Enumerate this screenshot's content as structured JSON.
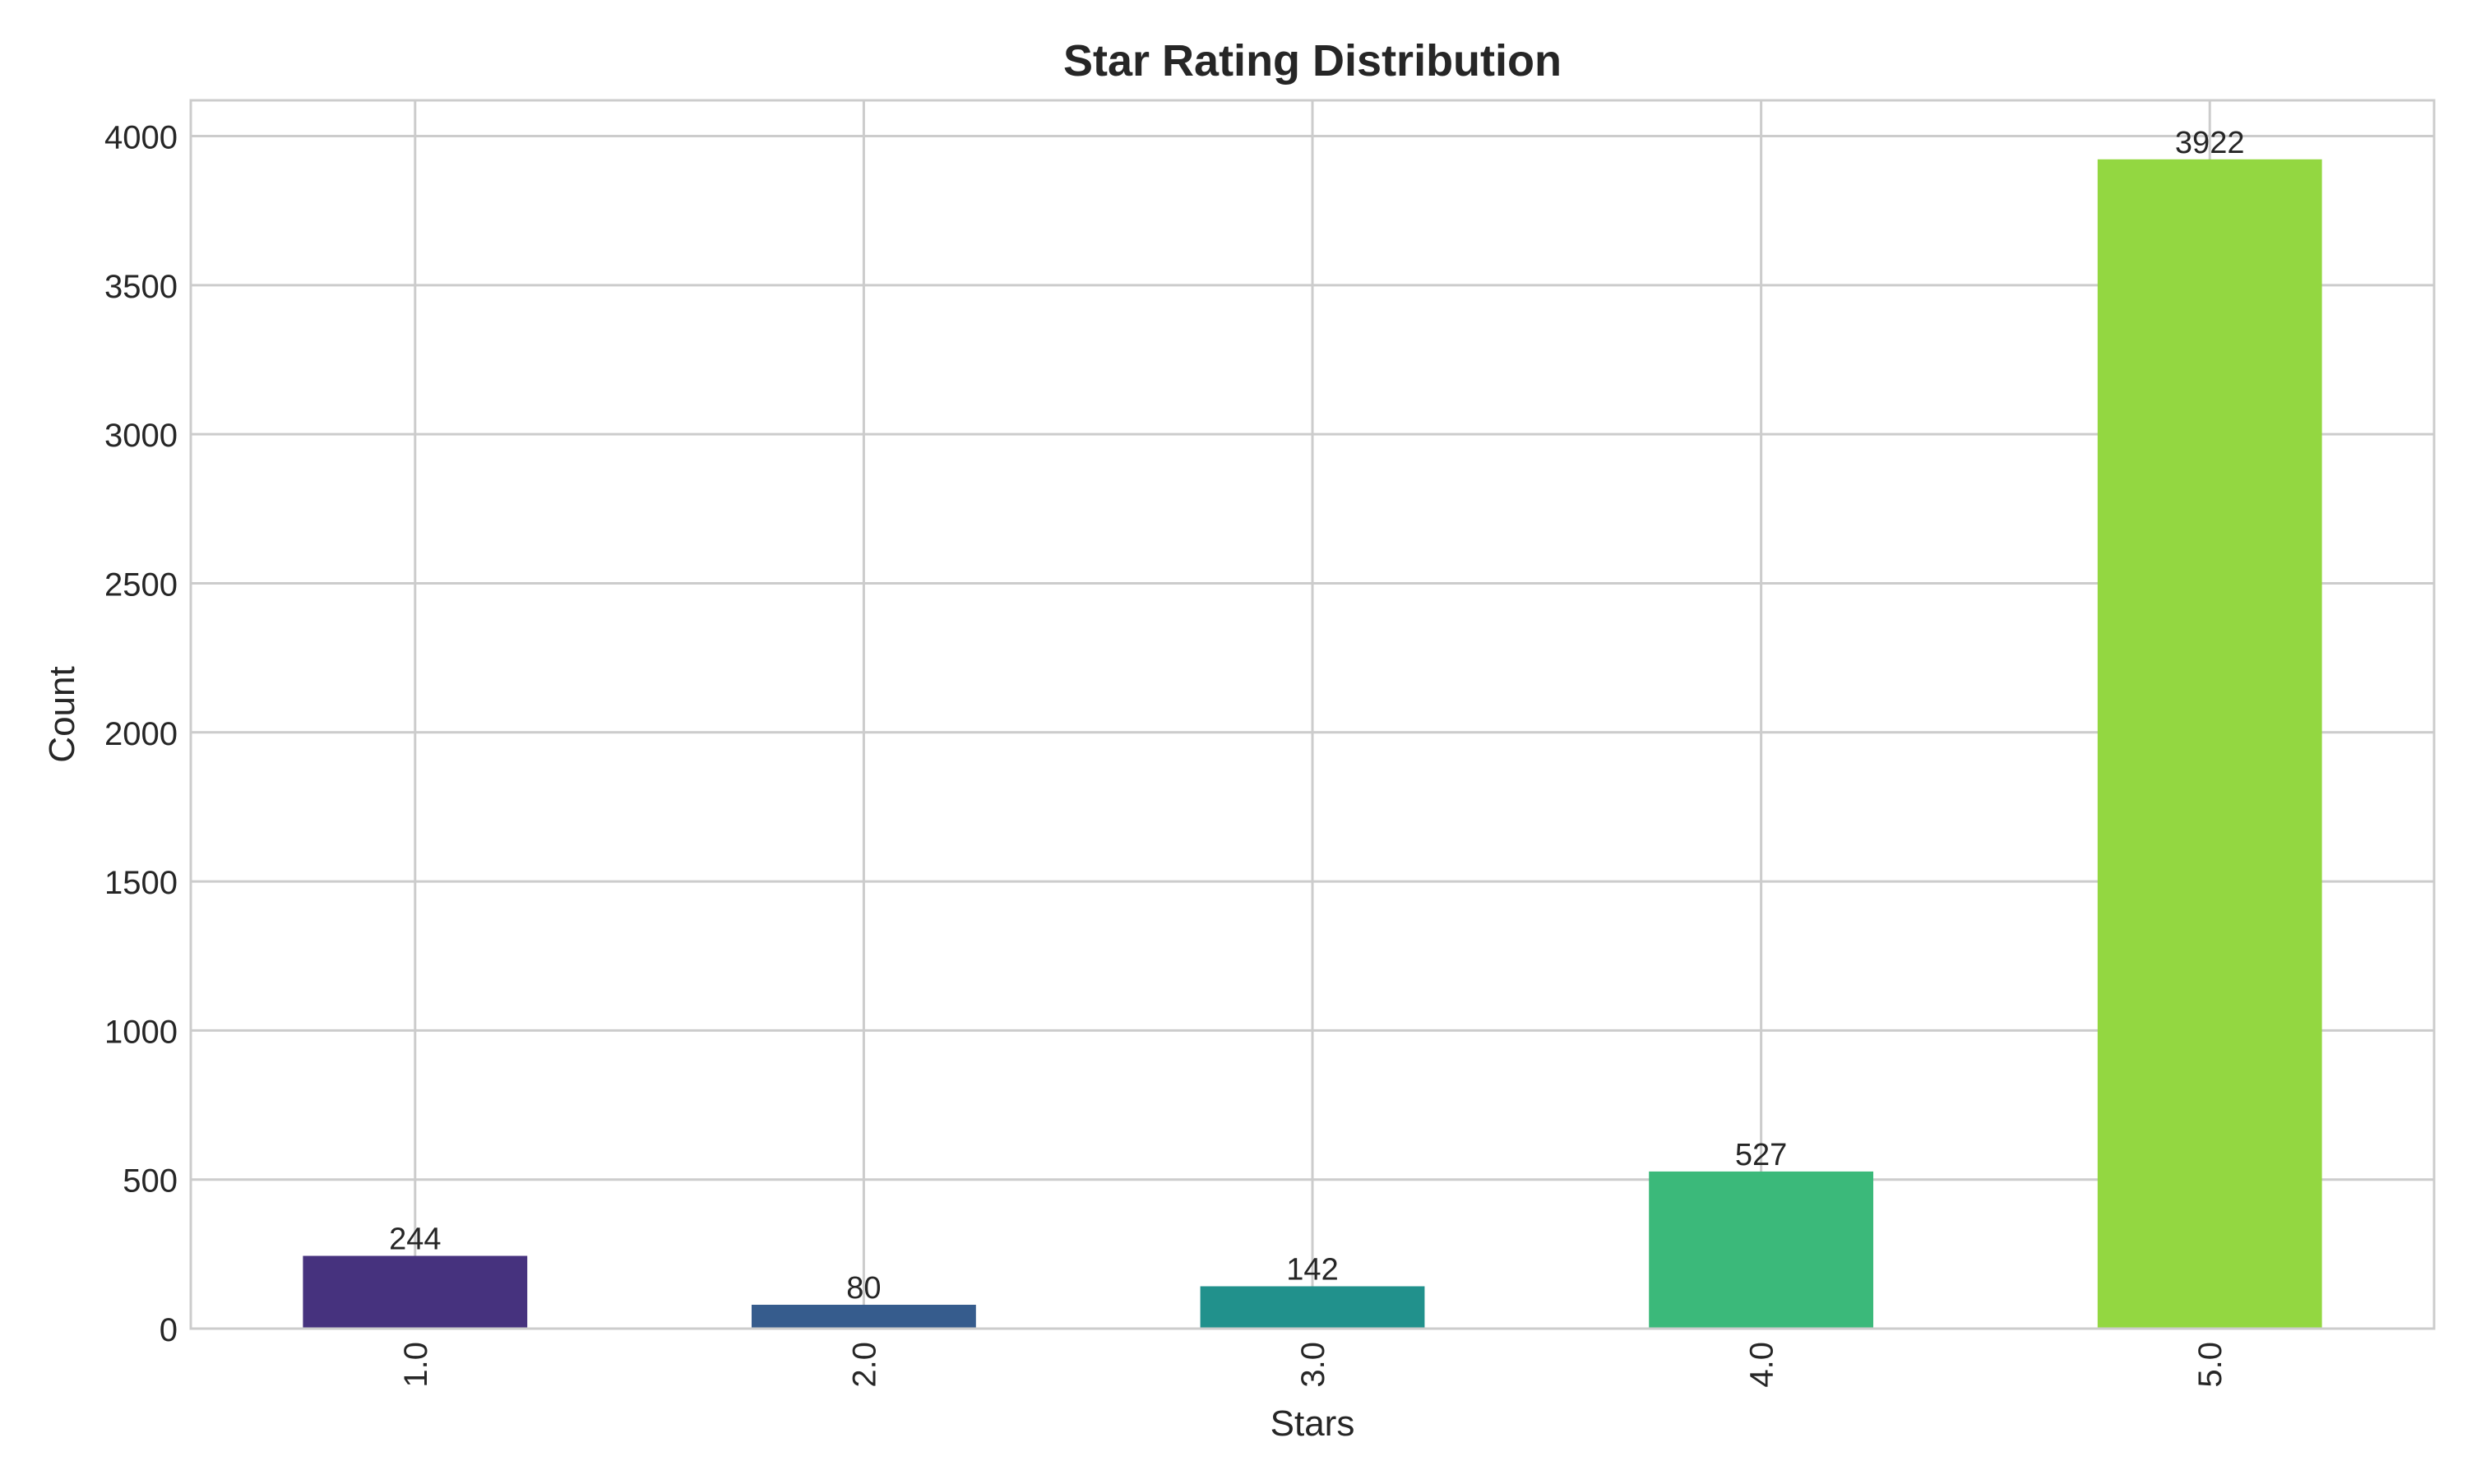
{
  "chart_data": {
    "type": "bar",
    "title": "Star Rating Distribution",
    "xlabel": "Stars",
    "ylabel": "Count",
    "categories": [
      "1.0",
      "2.0",
      "3.0",
      "4.0",
      "5.0"
    ],
    "values": [
      244,
      80,
      142,
      527,
      3922
    ],
    "data_labels": [
      "244",
      "80",
      "142",
      "527",
      "3922"
    ],
    "colors": [
      "#46327e",
      "#365c8d",
      "#21918c",
      "#3bb97a",
      "#93d741"
    ],
    "yticks": [
      0,
      500,
      1000,
      1500,
      2000,
      2500,
      3000,
      3500,
      4000
    ],
    "ylim": [
      0,
      4120
    ],
    "grid": true,
    "legend": "none"
  }
}
